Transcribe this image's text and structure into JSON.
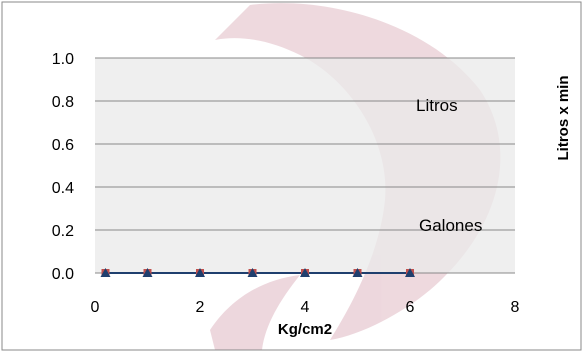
{
  "chart_data": {
    "type": "scatter",
    "title": "",
    "xlabel": "Kg/cm2",
    "ylabel": "Litros x min",
    "xlim": [
      0,
      8
    ],
    "ylim": [
      0,
      1
    ],
    "x_ticks": [
      "0",
      "2",
      "4",
      "6",
      "8"
    ],
    "y_ticks": [
      "0.0",
      "0.2",
      "0.4",
      "0.6",
      "0.8",
      "1.0"
    ],
    "grid": "horizontal",
    "series": [
      {
        "name": "Litros",
        "color": "#c0504d",
        "marker": "square",
        "x": [
          0.2,
          1,
          2,
          3,
          4,
          5,
          6
        ],
        "y": [
          0,
          0,
          0,
          0,
          0,
          0,
          0
        ]
      },
      {
        "name": "Galones",
        "color": "#1f3f6e",
        "marker": "triangle",
        "x": [
          0.2,
          1,
          2,
          3,
          4,
          5,
          6
        ],
        "y": [
          0,
          0,
          0,
          0,
          0,
          0,
          0
        ]
      }
    ],
    "annotations": [
      "Litros",
      "Galones"
    ]
  },
  "colors": {
    "plot_background": "#e9e9e9",
    "border": "#8a8a8a",
    "gridline": "#888888",
    "watermark": "#9e2a4a"
  }
}
